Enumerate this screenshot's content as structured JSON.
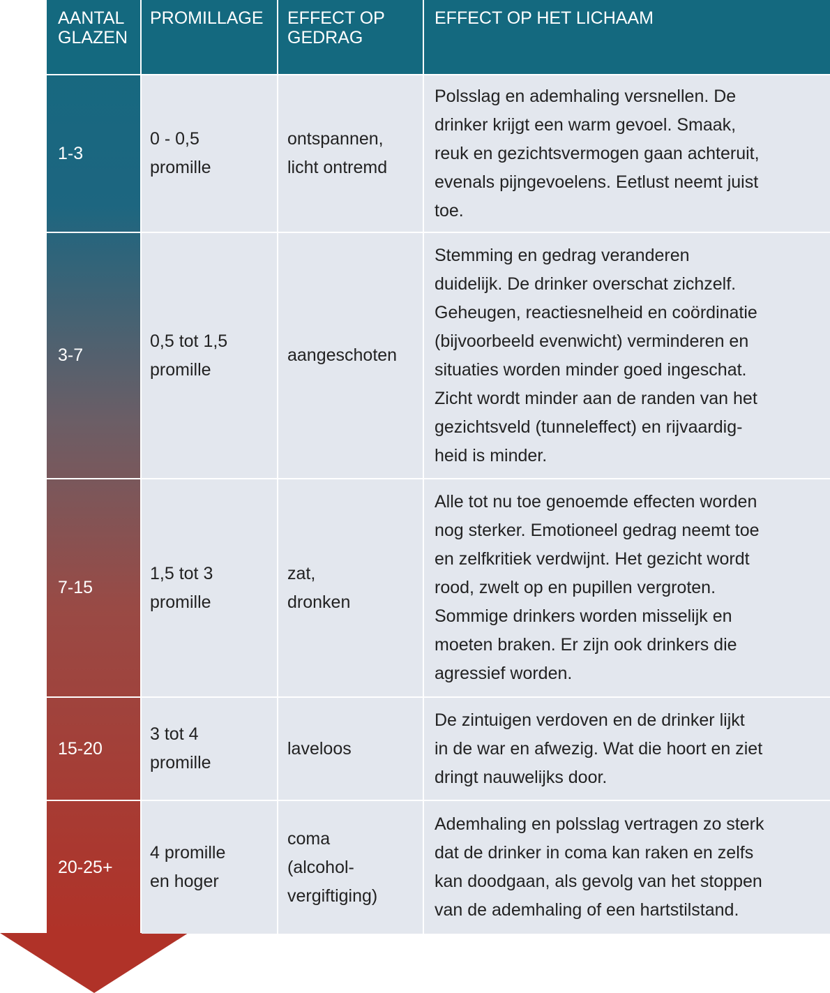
{
  "table": {
    "header": [
      [
        "AANTAL",
        "GLAZEN"
      ],
      [
        "PROMILLAGE"
      ],
      [
        "EFFECT OP",
        "GEDRAG"
      ],
      [
        "EFFECT OP HET LICHAAM"
      ]
    ],
    "rows": [
      [
        [
          "1-3"
        ],
        [
          "0 - 0,5",
          "promille"
        ],
        [
          "ontspannen,",
          "licht ontremd"
        ],
        [
          "Polsslag en ademhaling versnellen. De",
          "drinker krijgt een warm gevoel. Smaak,",
          "reuk en gezichtsvermogen gaan achteruit,",
          "evenals pijngevoelens. Eetlust neemt juist",
          "toe."
        ]
      ],
      [
        [
          "3-7"
        ],
        [
          "0,5 tot 1,5",
          "promille"
        ],
        [
          "aangeschoten"
        ],
        [
          "Stemming en gedrag veranderen",
          "duidelijk. De drinker overschat zichzelf.",
          "Geheugen, reactiesnelheid en coördinatie",
          "(bijvoorbeeld evenwicht) verminderen en",
          "situaties worden minder goed ingeschat.",
          "Zicht wordt minder aan de randen van het",
          "gezichtsveld (tunneleffect) en rijvaardig-",
          "heid is minder."
        ]
      ],
      [
        [
          "7-15"
        ],
        [
          "1,5 tot 3",
          "promille"
        ],
        [
          "zat,",
          "dronken"
        ],
        [
          "Alle tot nu toe genoemde effecten worden",
          "nog sterker. Emotioneel gedrag neemt toe",
          "en zelfkritiek verdwijnt. Het gezicht wordt",
          "rood, zwelt op en pupillen vergroten.",
          "Sommige drinkers worden misselijk en",
          "moeten braken. Er zijn ook drinkers die",
          "agressief worden."
        ]
      ],
      [
        [
          "15-20"
        ],
        [
          "3 tot 4",
          "promille"
        ],
        [
          "laveloos"
        ],
        [
          "De zintuigen verdoven en de drinker lijkt",
          "in de war en afwezig. Wat die hoort en ziet",
          "dringt nauwelijks door."
        ]
      ],
      [
        [
          "20-25+"
        ],
        [
          "4 promille",
          "en hoger"
        ],
        [
          "coma",
          "(alcohol-",
          "vergiftiging)"
        ],
        [
          "Ademhaling en polsslag vertragen zo sterk",
          "dat de drinker in coma kan raken en zelfs",
          "kan doodgaan, als gevolg van het stoppen",
          "van de ademhaling of een hartstilstand."
        ]
      ]
    ]
  }
}
